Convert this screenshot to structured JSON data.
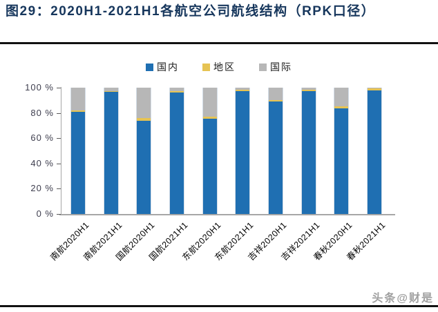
{
  "title": "图29：2020H1-2021H1各航空公司航线结构（RPK口径）",
  "watermark": "头条@财是",
  "colors": {
    "domestic_blue": "#1F6FB2",
    "regional_yellow": "#E6C353",
    "international_gray": "#B7B7B7",
    "title_navy": "#16365C",
    "axis_gray": "#A6A6A6"
  },
  "chart_data": {
    "type": "bar",
    "stacked": true,
    "percent_stacked": true,
    "grid": false,
    "legend_position": "top-center",
    "ylim": [
      0,
      100
    ],
    "y_ticks": [
      "0 %",
      "20 %",
      "40 %",
      "60 %",
      "80 %",
      "100 %"
    ],
    "categories": [
      "南航2020H1",
      "南航2021H1",
      "国航2020H1",
      "国航2021H1",
      "东航2020H1",
      "东航2021H1",
      "吉祥2020H1",
      "吉祥2021H1",
      "春秋2020H1",
      "春秋2021H1"
    ],
    "series": [
      {
        "name": "国内",
        "color": "#1F6FB2",
        "values": [
          81,
          97,
          74,
          96,
          75.5,
          97.5,
          89,
          97.3,
          83.5,
          98
        ]
      },
      {
        "name": "地区",
        "color": "#E6C353",
        "values": [
          1,
          0.3,
          2,
          1.5,
          1.5,
          0.7,
          1.4,
          1,
          1.5,
          1.4
        ]
      },
      {
        "name": "国际",
        "color": "#B7B7B7",
        "values": [
          18,
          2.7,
          24,
          2.5,
          23,
          1.8,
          9.6,
          1.7,
          15,
          0.6
        ]
      }
    ]
  }
}
